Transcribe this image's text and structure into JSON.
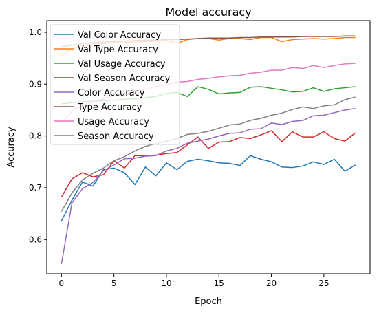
{
  "chart_data": {
    "type": "line",
    "title": "Model accuracy",
    "xlabel": "Epoch",
    "ylabel": "Accuracy",
    "xlim": [
      -1.4,
      29.4
    ],
    "ylim": [
      0.534,
      1.0225
    ],
    "xticks": [
      0,
      5,
      10,
      15,
      20,
      25
    ],
    "yticks": [
      0.6,
      0.7,
      0.8,
      0.9,
      1.0
    ],
    "xtick_labels": [
      "0",
      "5",
      "10",
      "15",
      "20",
      "25"
    ],
    "ytick_labels": [
      "0.6",
      "0.7",
      "0.8",
      "0.9",
      "1.0"
    ],
    "grid": false,
    "legend_position": "upper-left",
    "x": [
      0,
      1,
      2,
      3,
      4,
      5,
      6,
      7,
      8,
      9,
      10,
      11,
      12,
      13,
      14,
      15,
      16,
      17,
      18,
      19,
      20,
      21,
      22,
      23,
      24,
      25,
      26,
      27,
      28
    ],
    "series": [
      {
        "name": "Val Color Accuracy",
        "color": "#1f77b4",
        "values": [
          0.636,
          0.676,
          0.711,
          0.703,
          0.735,
          0.738,
          0.729,
          0.706,
          0.74,
          0.723,
          0.748,
          0.735,
          0.751,
          0.755,
          0.752,
          0.748,
          0.747,
          0.743,
          0.762,
          0.755,
          0.75,
          0.74,
          0.739,
          0.742,
          0.75,
          0.745,
          0.755,
          0.732,
          0.744
        ]
      },
      {
        "name": "Val Type Accuracy",
        "color": "#ff7f0e",
        "values": [
          0.955,
          0.968,
          0.975,
          0.978,
          0.978,
          0.98,
          0.98,
          0.982,
          0.982,
          0.983,
          0.984,
          0.979,
          0.986,
          0.988,
          0.988,
          0.985,
          0.988,
          0.988,
          0.986,
          0.99,
          0.99,
          0.982,
          0.986,
          0.987,
          0.988,
          0.987,
          0.988,
          0.99,
          0.99
        ]
      },
      {
        "name": "Val Usage Accuracy",
        "color": "#2ca02c",
        "values": [
          0.862,
          0.864,
          0.866,
          0.867,
          0.868,
          0.869,
          0.871,
          0.872,
          0.874,
          0.876,
          0.882,
          0.884,
          0.876,
          0.895,
          0.89,
          0.881,
          0.883,
          0.884,
          0.894,
          0.895,
          0.892,
          0.889,
          0.885,
          0.886,
          0.893,
          0.886,
          0.891,
          0.893,
          0.895
        ]
      },
      {
        "name": "Val Season Accuracy",
        "color": "#d62728",
        "values": [
          0.682,
          0.717,
          0.729,
          0.721,
          0.725,
          0.752,
          0.738,
          0.762,
          0.762,
          0.763,
          0.766,
          0.768,
          0.783,
          0.798,
          0.776,
          0.788,
          0.789,
          0.797,
          0.795,
          0.802,
          0.81,
          0.789,
          0.808,
          0.798,
          0.798,
          0.808,
          0.795,
          0.79,
          0.806
        ]
      },
      {
        "name": "Color Accuracy",
        "color": "#9467bd",
        "values": [
          0.553,
          0.671,
          0.698,
          0.71,
          0.733,
          0.744,
          0.756,
          0.757,
          0.761,
          0.762,
          0.771,
          0.776,
          0.786,
          0.79,
          0.794,
          0.8,
          0.805,
          0.806,
          0.813,
          0.814,
          0.825,
          0.822,
          0.828,
          0.83,
          0.839,
          0.84,
          0.845,
          0.85,
          0.853
        ]
      },
      {
        "name": "Type Accuracy",
        "color": "#8c564b",
        "values": [
          0.972,
          0.975,
          0.978,
          0.98,
          0.981,
          0.982,
          0.983,
          0.984,
          0.985,
          0.985,
          0.986,
          0.986,
          0.987,
          0.988,
          0.989,
          0.989,
          0.989,
          0.99,
          0.99,
          0.991,
          0.991,
          0.991,
          0.991,
          0.992,
          0.992,
          0.992,
          0.992,
          0.993,
          0.993
        ]
      },
      {
        "name": "Usage Accuracy",
        "color": "#e377c2",
        "values": [
          0.825,
          0.848,
          0.858,
          0.866,
          0.872,
          0.878,
          0.882,
          0.886,
          0.89,
          0.895,
          0.899,
          0.904,
          0.905,
          0.909,
          0.911,
          0.914,
          0.916,
          0.917,
          0.921,
          0.923,
          0.927,
          0.927,
          0.932,
          0.93,
          0.936,
          0.932,
          0.936,
          0.939,
          0.94
        ]
      },
      {
        "name": "Season Accuracy",
        "color": "#7f7f7f",
        "values": [
          0.654,
          0.69,
          0.715,
          0.728,
          0.738,
          0.752,
          0.76,
          0.771,
          0.78,
          0.785,
          0.79,
          0.795,
          0.803,
          0.805,
          0.809,
          0.815,
          0.821,
          0.823,
          0.83,
          0.834,
          0.84,
          0.844,
          0.851,
          0.856,
          0.853,
          0.858,
          0.86,
          0.87,
          0.875
        ]
      }
    ]
  }
}
